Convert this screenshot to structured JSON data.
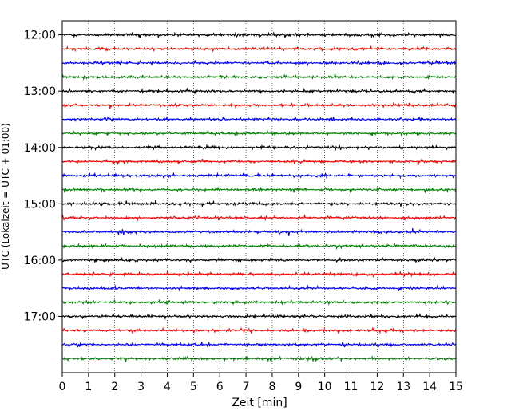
{
  "chart_data": {
    "type": "line",
    "title": "",
    "xlabel": "Zeit  [min]",
    "ylabel": "UTC (Lokalzeit = UTC + 01:00)",
    "xlim": [
      0,
      15
    ],
    "x_ticks": [
      "0",
      "1",
      "2",
      "3",
      "4",
      "5",
      "6",
      "7",
      "8",
      "9",
      "10",
      "11",
      "12",
      "13",
      "14",
      "15"
    ],
    "y_ticks": [
      "12:00",
      "13:00",
      "14:00",
      "15:00",
      "16:00",
      "17:00"
    ],
    "ylim_top": "11:45",
    "ylim_bottom": "18:00",
    "grid": "vertical dotted at each minute",
    "trace_interval_minutes": 15,
    "trace_start_times": [
      "12:00",
      "12:15",
      "12:30",
      "12:45",
      "13:00",
      "13:15",
      "13:30",
      "13:45",
      "14:00",
      "14:15",
      "14:30",
      "14:45",
      "15:00",
      "15:15",
      "15:30",
      "15:45",
      "16:00",
      "16:15",
      "16:30",
      "16:45",
      "17:00",
      "17:15",
      "17:30",
      "17:45"
    ],
    "trace_colors": [
      "#000000",
      "#ff0000",
      "#0000ff",
      "#008000"
    ],
    "series_description": "seismogram traces oscillating around each line's start time"
  }
}
